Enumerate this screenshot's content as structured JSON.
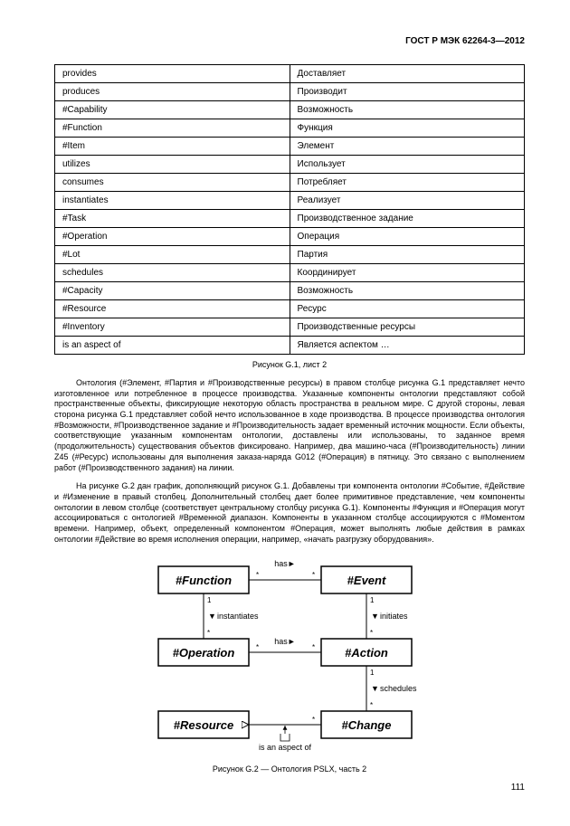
{
  "header": "ГОСТ Р МЭК 62264-3—2012",
  "table": {
    "rows": [
      [
        "provides",
        "Доставляет"
      ],
      [
        "produces",
        "Производит"
      ],
      [
        "#Capability",
        "Возможность"
      ],
      [
        "#Function",
        "Функция"
      ],
      [
        "#Item",
        "Элемент"
      ],
      [
        "utilizes",
        "Использует"
      ],
      [
        "consumes",
        "Потребляет"
      ],
      [
        "instantiates",
        "Реализует"
      ],
      [
        "#Task",
        "Производственное задание"
      ],
      [
        "#Operation",
        "Операция"
      ],
      [
        "#Lot",
        "Партия"
      ],
      [
        "schedules",
        "Координирует"
      ],
      [
        "#Capacity",
        "Возможность"
      ],
      [
        "#Resource",
        "Ресурс"
      ],
      [
        "#Inventory",
        "Производственные ресурсы"
      ],
      [
        "is an aspect of",
        "Является аспектом …"
      ]
    ]
  },
  "caption1": "Рисунок G.1, лист 2",
  "para1": "Онтология (#Элемент, #Партия и #Производственные ресурсы) в правом столбце рисунка G.1 представляет нечто изготовленное или потребленное в процессе производства. Указанные компоненты онтологии представляют собой пространственные объекты, фиксирующие некоторую область пространства в реальном мире. С другой стороны, левая сторона рисунка G.1 представляет собой нечто использованное в ходе производства. В процессе производства онтология #Возможности, #Производственное задание и #Производительность задает временный источник мощности. Если объекты, соответствующие указанным компонентам онтологии, доставлены или использованы, то заданное время (продолжительность) существования объектов фиксировано. Например, два машино-часа (#Производительность) линии Z45 (#Ресурс) использованы для выполнения заказа-наряда G012 (#Операция) в пятницу. Это связано с выполнением работ (#Производственного задания) на линии.",
  "para2": "На рисунке G.2 дан график, дополняющий рисунок G.1. Добавлены три компонента онтологии #Событие, #Действие и #Изменение в правый столбец. Дополнительный столбец дает более примитивное представление, чем компоненты онтологии в левом столбце (соответствует центральному столбцу рисунка G.1). Компоненты #Функция и #Операция могут ассоциироваться с онтологией #Временной диапазон. Компоненты в указанном столбце ассоциируются с #Моментом времени. Например, объект, определенный компонентом #Операция, может выполнять любые действия в рамках онтологии #Действие во время исполнения операции, например, «начать разгрузку оборудования».",
  "diagram": {
    "boxes": {
      "function": "#Function",
      "event": "#Event",
      "operation": "#Operation",
      "action": "#Action",
      "resource": "#Resource",
      "change": "#Change"
    },
    "labels": {
      "has": "has►",
      "instantiates": "instantiates",
      "initiates": "initiates",
      "schedules": "schedules",
      "is_aspect": "is an aspect of"
    }
  },
  "caption2": "Рисунок G.2 — Онтология PSLX, часть 2",
  "pagenum": "111"
}
